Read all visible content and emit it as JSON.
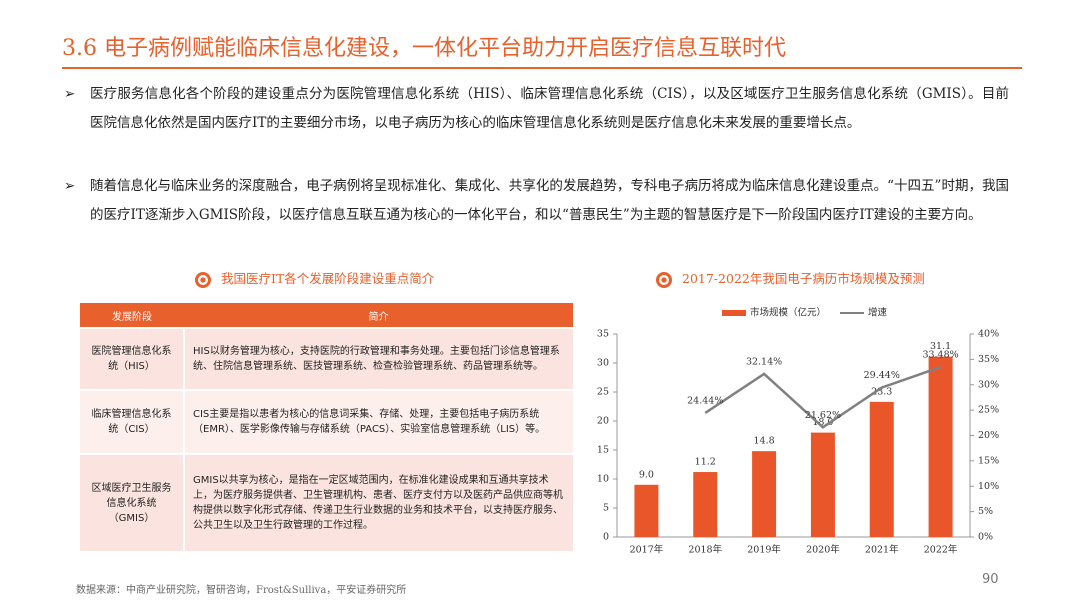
{
  "header": {
    "title": "3.6 电子病例赋能临床信息化建设，一体化平台助力开启医疗信息互联时代"
  },
  "bullets": [
    "医疗服务信息化各个阶段的建设重点分为医院管理信息化系统（HIS）、临床管理信息化系统（CIS），以及区域医疗卫生服务信息化系统（GMIS）。目前医院信息化依然是国内医疗IT的主要细分市场，以电子病历为核心的临床管理信息化系统则是医疗信息化未来发展的重要增长点。",
    "随着信息化与临床业务的深度融合，电子病例将呈现标准化、集成化、共享化的发展趋势，专科电子病历将成为临床信息化建设重点。“十四五”时期，我国的医疗IT逐渐步入GMIS阶段，以医疗信息互联互通为核心的一体化平台，和以“普惠民生”为主题的智慧医疗是下一阶段国内医疗IT建设的主要方向。"
  ],
  "table": {
    "title": "我国医疗IT各个发展阶段建设重点简介",
    "headers": [
      "发展阶段",
      "简介"
    ],
    "rows": [
      [
        "医院管理信息化系统（HIS）",
        "HIS以财务管理为核心，支持医院的行政管理和事务处理。主要包括门诊信息管理系统、住院信息管理系统、医技管理系统、检查检验管理系统、药品管理系统等。"
      ],
      [
        "临床管理信息化系统（CIS）",
        "CIS主要是指以患者为核心的信息词采集、存储、处理，主要包括电子病历系统（EMR）、医学影像传输与存储系统（PACS）、实验室信息管理系统（LIS）等。"
      ],
      [
        "区域医疗卫生服务信息化系统（GMIS）",
        "GMIS以共享为核心，是指在一定区域范围内，在标准化建设成果和互通共享技术上，为医疗服务提供者、卫生管理机构、患者、医疗支付方以及医药产品供应商等机构提供以数字化形式存储、传递卫生行业数据的业务和技术平台，以支持医疗服务、公共卫生以及卫生行政管理的工作过程。"
      ]
    ]
  },
  "chart_data": {
    "type": "bar",
    "title": "2017-2022年我国电子病历市场规模及预测",
    "categories": [
      "2017年",
      "2018年",
      "2019年",
      "2020年",
      "2021年",
      "2022年"
    ],
    "series": [
      {
        "name": "市场规模（亿元）",
        "color": "#e8562a",
        "type": "bar",
        "values": [
          9.0,
          11.2,
          14.8,
          18.0,
          23.3,
          31.1
        ],
        "value_labels": [
          "9.0",
          "11.2",
          "14.8",
          "18.0",
          "23.3",
          "31.1"
        ]
      },
      {
        "name": "增速",
        "color": "#808080",
        "type": "line",
        "axis": "y2",
        "values": [
          null,
          24.44,
          32.14,
          21.62,
          29.44,
          33.48
        ],
        "value_labels": [
          null,
          "24.44%",
          "32.14%",
          "21.62%",
          "29.44%",
          "33.48%"
        ]
      }
    ],
    "ylim": [
      0,
      35
    ],
    "yticks": [
      0,
      5,
      10,
      15,
      20,
      25,
      30,
      35
    ],
    "y2lim": [
      0,
      40
    ],
    "y2ticks": [
      {
        "value": 0,
        "label": "0%"
      },
      {
        "value": 5,
        "label": "5%"
      },
      {
        "value": 10,
        "label": "10%"
      },
      {
        "value": 15,
        "label": "15%"
      },
      {
        "value": 20,
        "label": "20%"
      },
      {
        "value": 25,
        "label": "25%"
      },
      {
        "value": 30,
        "label": "30%"
      },
      {
        "value": 35,
        "label": "35%"
      },
      {
        "value": 40,
        "label": "40%"
      }
    ],
    "legend": "top"
  },
  "footer": {
    "source": "数据来源：中商产业研究院，智研咨询，Frost&Sulliva，平安证券研究所",
    "page": "90"
  }
}
